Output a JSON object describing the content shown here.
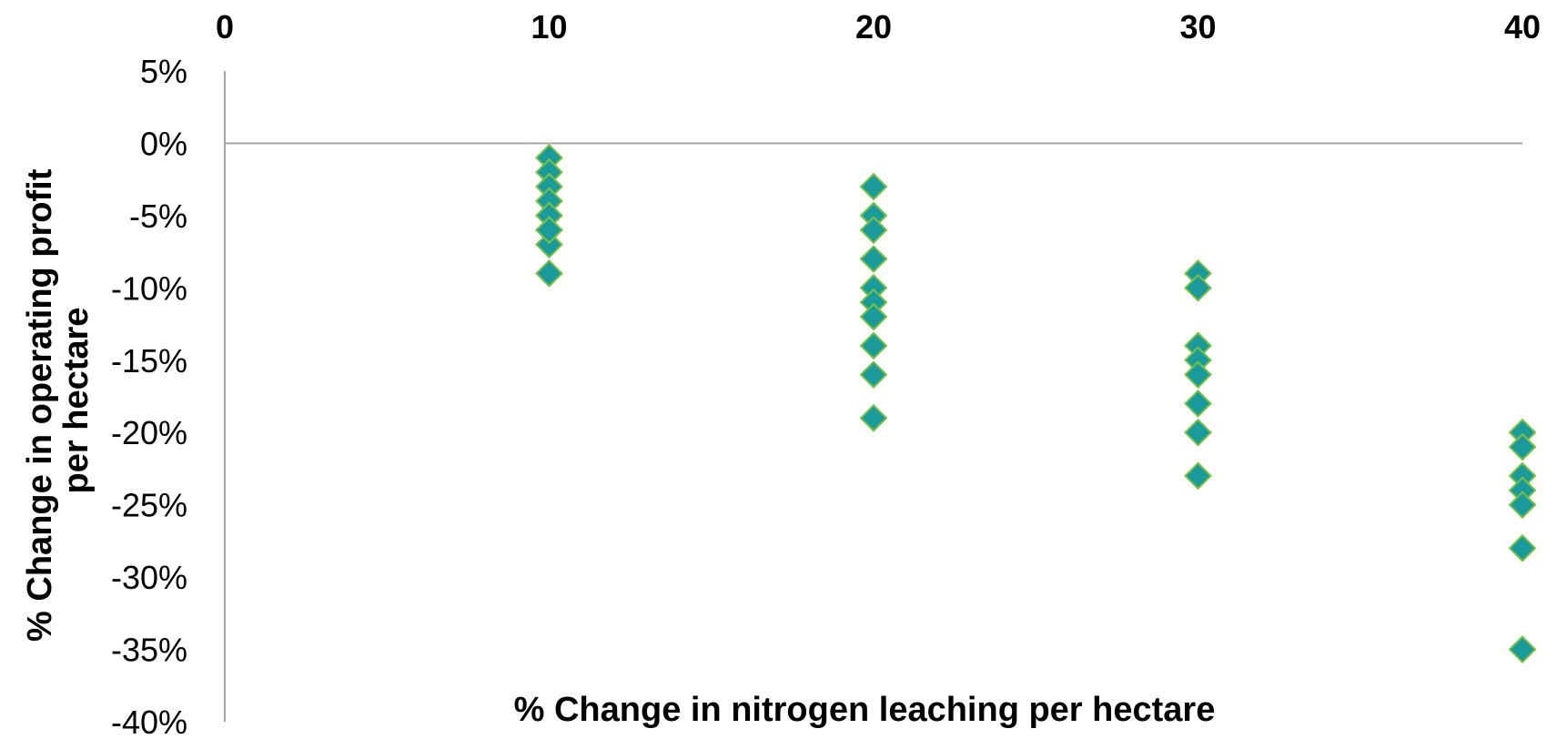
{
  "chart_data": {
    "type": "scatter",
    "title": "",
    "xlabel": "% Change in nitrogen leaching per hectare",
    "ylabel_lines": [
      "% Change in operating profit",
      "per hectare"
    ],
    "xlim": [
      0,
      40
    ],
    "ylim": [
      -40,
      5
    ],
    "x_ticks": [
      0,
      10,
      20,
      30,
      40
    ],
    "x_tick_labels": [
      "0",
      "10",
      "20",
      "30",
      "40"
    ],
    "y_ticks": [
      5,
      0,
      -5,
      -10,
      -15,
      -20,
      -25,
      -30,
      -35,
      -40
    ],
    "y_tick_labels": [
      "5%",
      "0%",
      "-5%",
      "-10%",
      "-15%",
      "-20%",
      "-25%",
      "-30%",
      "-35%",
      "-40%"
    ],
    "x_axis_position": "top",
    "grid": false,
    "legend": "none",
    "marker": "diamond",
    "colors": {
      "marker_fill": "#1a9a9a",
      "marker_stroke": "#7ac142",
      "axis_line": "#a6a6a6"
    },
    "series": [
      {
        "x": [
          10,
          10,
          10,
          10,
          10,
          10,
          10,
          10,
          10,
          20,
          20,
          20,
          20,
          20,
          20,
          20,
          20,
          20,
          20,
          30,
          30,
          30,
          30,
          30,
          30,
          30,
          30,
          40,
          40,
          40,
          40,
          40,
          40,
          40
        ],
        "y": [
          -1,
          -2,
          -3,
          -4,
          -5,
          -6,
          -7,
          -9,
          -6,
          -3,
          -5,
          -6,
          -8,
          -10,
          -11,
          -12,
          -14,
          -16,
          -19,
          -9,
          -10,
          -14,
          -15,
          -16,
          -18,
          -20,
          -23,
          -20,
          -21,
          -23,
          -24,
          -25,
          -28,
          -35
        ]
      }
    ]
  }
}
